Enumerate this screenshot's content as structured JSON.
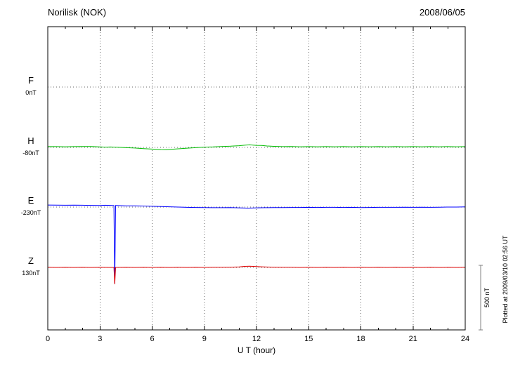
{
  "chart_data": {
    "type": "line",
    "title": "Norilisk (NOK)",
    "date": "2008/06/05",
    "xlabel": "U T (hour)",
    "x_range": [
      0,
      24
    ],
    "x_ticks": [
      0,
      3,
      6,
      9,
      12,
      15,
      18,
      21,
      24
    ],
    "scale_bar": {
      "label": "500 nT",
      "nT": 500
    },
    "footer": "Plotted at 2009/03/10 02:56 UT",
    "series": [
      {
        "name": "F",
        "baseline_label": "0nT",
        "color": "#FFA500",
        "points": []
      },
      {
        "name": "H",
        "baseline_label": "-80nT",
        "color": "#00BB00",
        "points": [
          [
            0,
            6
          ],
          [
            0.5,
            6
          ],
          [
            1,
            5
          ],
          [
            1.5,
            6
          ],
          [
            2,
            7
          ],
          [
            2.5,
            7
          ],
          [
            3,
            4
          ],
          [
            3.3,
            2
          ],
          [
            3.6,
            3
          ],
          [
            3.85,
            2
          ],
          [
            4,
            1
          ],
          [
            4.5,
            -2
          ],
          [
            5,
            -5
          ],
          [
            5.5,
            -9
          ],
          [
            6,
            -13
          ],
          [
            6.5,
            -17
          ],
          [
            6.8,
            -18
          ],
          [
            7,
            -16
          ],
          [
            7.5,
            -11
          ],
          [
            8,
            -6
          ],
          [
            8.5,
            -2
          ],
          [
            9,
            2
          ],
          [
            9.5,
            4
          ],
          [
            10,
            7
          ],
          [
            10.5,
            9
          ],
          [
            11,
            13
          ],
          [
            11.3,
            17
          ],
          [
            11.6,
            20
          ],
          [
            11.8,
            18
          ],
          [
            12,
            16
          ],
          [
            12.3,
            15
          ],
          [
            12.6,
            11
          ],
          [
            13,
            8
          ],
          [
            13.5,
            6
          ],
          [
            14,
            7
          ],
          [
            14.5,
            5
          ],
          [
            15,
            6
          ],
          [
            15.5,
            5
          ],
          [
            16,
            6
          ],
          [
            16.5,
            5
          ],
          [
            17,
            6
          ],
          [
            17.5,
            5
          ],
          [
            18,
            6
          ],
          [
            18.5,
            5
          ],
          [
            19,
            6
          ],
          [
            19.5,
            5
          ],
          [
            20,
            6
          ],
          [
            20.5,
            5
          ],
          [
            21,
            6
          ],
          [
            21.5,
            5
          ],
          [
            22,
            6
          ],
          [
            22.5,
            5
          ],
          [
            23,
            6
          ],
          [
            23.5,
            5
          ],
          [
            24,
            6
          ]
        ]
      },
      {
        "name": "E",
        "baseline_label": "-230nT",
        "color": "#0000FF",
        "points": [
          [
            0,
            16
          ],
          [
            0.5,
            15
          ],
          [
            1,
            14
          ],
          [
            1.5,
            15
          ],
          [
            2,
            14
          ],
          [
            2.5,
            13
          ],
          [
            3,
            12
          ],
          [
            3.3,
            14
          ],
          [
            3.6,
            13
          ],
          [
            3.8,
            12
          ],
          [
            3.85,
            -590
          ],
          [
            3.9,
            12
          ],
          [
            4.2,
            11
          ],
          [
            4.5,
            10
          ],
          [
            5,
            9
          ],
          [
            5.5,
            8
          ],
          [
            6,
            6
          ],
          [
            6.5,
            4
          ],
          [
            7,
            2
          ],
          [
            7.5,
            0
          ],
          [
            8,
            -2
          ],
          [
            8.5,
            -3
          ],
          [
            9,
            -4
          ],
          [
            9.5,
            -5
          ],
          [
            10,
            -5
          ],
          [
            10.5,
            -4
          ],
          [
            11,
            -6
          ],
          [
            11.5,
            -8
          ],
          [
            12,
            -6
          ],
          [
            12.5,
            -5
          ],
          [
            13,
            -4
          ],
          [
            13.5,
            -4
          ],
          [
            14,
            -3
          ],
          [
            14.5,
            -3
          ],
          [
            15,
            -2
          ],
          [
            15.5,
            -3
          ],
          [
            16,
            -2
          ],
          [
            16.5,
            -2
          ],
          [
            17,
            -3
          ],
          [
            17.5,
            -2
          ],
          [
            18,
            -4
          ],
          [
            18.5,
            -3
          ],
          [
            19,
            -2
          ],
          [
            19.5,
            -2
          ],
          [
            20,
            -2
          ],
          [
            20.5,
            -1
          ],
          [
            21,
            -2
          ],
          [
            21.5,
            -1
          ],
          [
            22,
            -2
          ],
          [
            22.5,
            -1
          ],
          [
            23,
            0
          ],
          [
            23.5,
            0
          ],
          [
            24,
            1
          ]
        ]
      },
      {
        "name": "Z",
        "baseline_label": "130nT",
        "color": "#DD0000",
        "points": [
          [
            0,
            1
          ],
          [
            0.5,
            0
          ],
          [
            1,
            1
          ],
          [
            1.5,
            0
          ],
          [
            2,
            1
          ],
          [
            2.5,
            0
          ],
          [
            3,
            1
          ],
          [
            3.5,
            0
          ],
          [
            3.8,
            0
          ],
          [
            3.85,
            -130
          ],
          [
            3.9,
            0
          ],
          [
            4.5,
            1
          ],
          [
            5,
            0
          ],
          [
            5.5,
            1
          ],
          [
            6,
            0
          ],
          [
            6.5,
            1
          ],
          [
            7,
            0
          ],
          [
            7.5,
            1
          ],
          [
            8,
            0
          ],
          [
            8.5,
            1
          ],
          [
            9,
            0
          ],
          [
            9.5,
            1
          ],
          [
            10,
            1
          ],
          [
            10.5,
            2
          ],
          [
            11,
            4
          ],
          [
            11.3,
            8
          ],
          [
            11.6,
            10
          ],
          [
            12,
            7
          ],
          [
            12.3,
            5
          ],
          [
            12.6,
            3
          ],
          [
            13,
            2
          ],
          [
            13.5,
            1
          ],
          [
            14,
            1
          ],
          [
            14.5,
            0
          ],
          [
            15,
            1
          ],
          [
            15.5,
            0
          ],
          [
            16,
            1
          ],
          [
            16.5,
            0
          ],
          [
            17,
            1
          ],
          [
            17.5,
            0
          ],
          [
            18,
            1
          ],
          [
            18.5,
            0
          ],
          [
            19,
            1
          ],
          [
            19.5,
            0
          ],
          [
            20,
            1
          ],
          [
            20.5,
            0
          ],
          [
            21,
            1
          ],
          [
            21.5,
            0
          ],
          [
            22,
            1
          ],
          [
            22.5,
            0
          ],
          [
            23,
            1
          ],
          [
            23.5,
            0
          ],
          [
            24,
            1
          ]
        ]
      }
    ]
  }
}
